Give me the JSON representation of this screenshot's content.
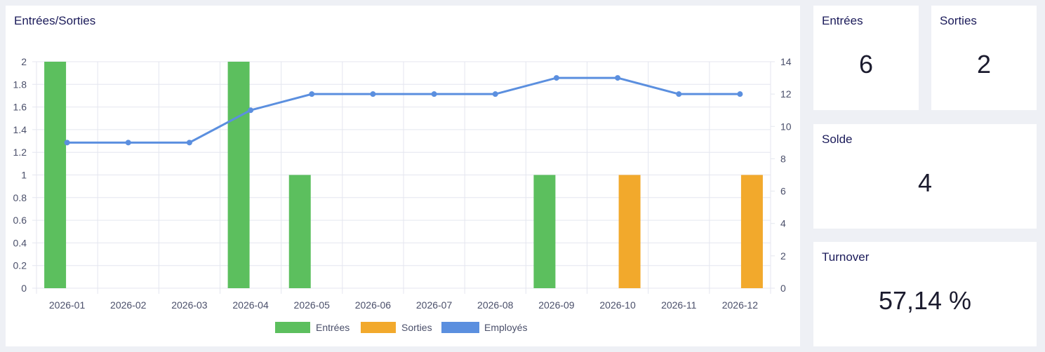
{
  "chart_card": {
    "title": "Entrées/Sorties"
  },
  "chart_data": {
    "type": "bar",
    "title": "Entrées/Sorties",
    "categories": [
      "2026-01",
      "2026-02",
      "2026-03",
      "2026-04",
      "2026-05",
      "2026-06",
      "2026-07",
      "2026-08",
      "2026-09",
      "2026-10",
      "2026-11",
      "2026-12"
    ],
    "series": [
      {
        "name": "Entrées",
        "type": "bar",
        "axis": "left",
        "color": "#5cbf5e",
        "values": [
          2,
          0,
          0,
          2,
          1,
          0,
          0,
          0,
          1,
          0,
          0,
          0
        ]
      },
      {
        "name": "Sorties",
        "type": "bar",
        "axis": "left",
        "color": "#f2a92c",
        "values": [
          0,
          0,
          0,
          0,
          0,
          0,
          0,
          0,
          0,
          1,
          0,
          1
        ]
      },
      {
        "name": "Employés",
        "type": "line",
        "axis": "right",
        "color": "#5b8fdf",
        "values": [
          9,
          9,
          9,
          11,
          12,
          12,
          12,
          12,
          13,
          13,
          12,
          12
        ]
      }
    ],
    "y_left": {
      "range": [
        0,
        2
      ],
      "ticks": [
        "0",
        "0.2",
        "0.4",
        "0.6",
        "0.8",
        "1",
        "1.2",
        "1.4",
        "1.6",
        "1.8",
        "2"
      ]
    },
    "y_right": {
      "range": [
        0,
        14
      ],
      "ticks": [
        "0",
        "2",
        "4",
        "6",
        "8",
        "10",
        "12",
        "14"
      ]
    },
    "grid": true,
    "legend": "bottom"
  },
  "kpis": {
    "entrees": {
      "label": "Entrées",
      "value": "6"
    },
    "sorties": {
      "label": "Sorties",
      "value": "2"
    },
    "solde": {
      "label": "Solde",
      "value": "4"
    },
    "turnover": {
      "label": "Turnover",
      "value": "57,14 %"
    }
  }
}
